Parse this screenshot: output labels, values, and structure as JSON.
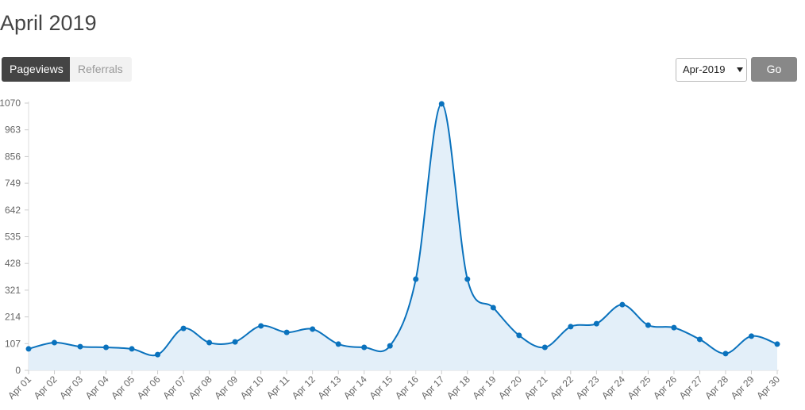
{
  "header": {
    "title": "April 2019"
  },
  "tabs": [
    "Pageviews",
    "Referrals"
  ],
  "month_select": "Apr-2019",
  "go_button": "Go",
  "chart_data": {
    "type": "area",
    "categories": [
      "Apr 01",
      "Apr 02",
      "Apr 03",
      "Apr 04",
      "Apr 05",
      "Apr 06",
      "Apr 07",
      "Apr 08",
      "Apr 09",
      "Apr 10",
      "Apr 11",
      "Apr 12",
      "Apr 13",
      "Apr 14",
      "Apr 15",
      "Apr 16",
      "Apr 17",
      "Apr 18",
      "Apr 19",
      "Apr 20",
      "Apr 21",
      "Apr 22",
      "Apr 23",
      "Apr 24",
      "Apr 25",
      "Apr 26",
      "Apr 27",
      "Apr 28",
      "Apr 29",
      "Apr 30"
    ],
    "values": [
      86,
      111,
      95,
      92,
      86,
      63,
      168,
      111,
      114,
      178,
      152,
      165,
      105,
      92,
      98,
      365,
      1067,
      365,
      251,
      140,
      92,
      175,
      187,
      263,
      181,
      171,
      124,
      67,
      137,
      105
    ],
    "color": "#0a72bd",
    "fill_color": "#e3eff9",
    "ylim": [
      0,
      1070
    ],
    "yticks": [
      0,
      107,
      214,
      321,
      428,
      535,
      642,
      749,
      856,
      963,
      1070
    ],
    "grid": false
  }
}
